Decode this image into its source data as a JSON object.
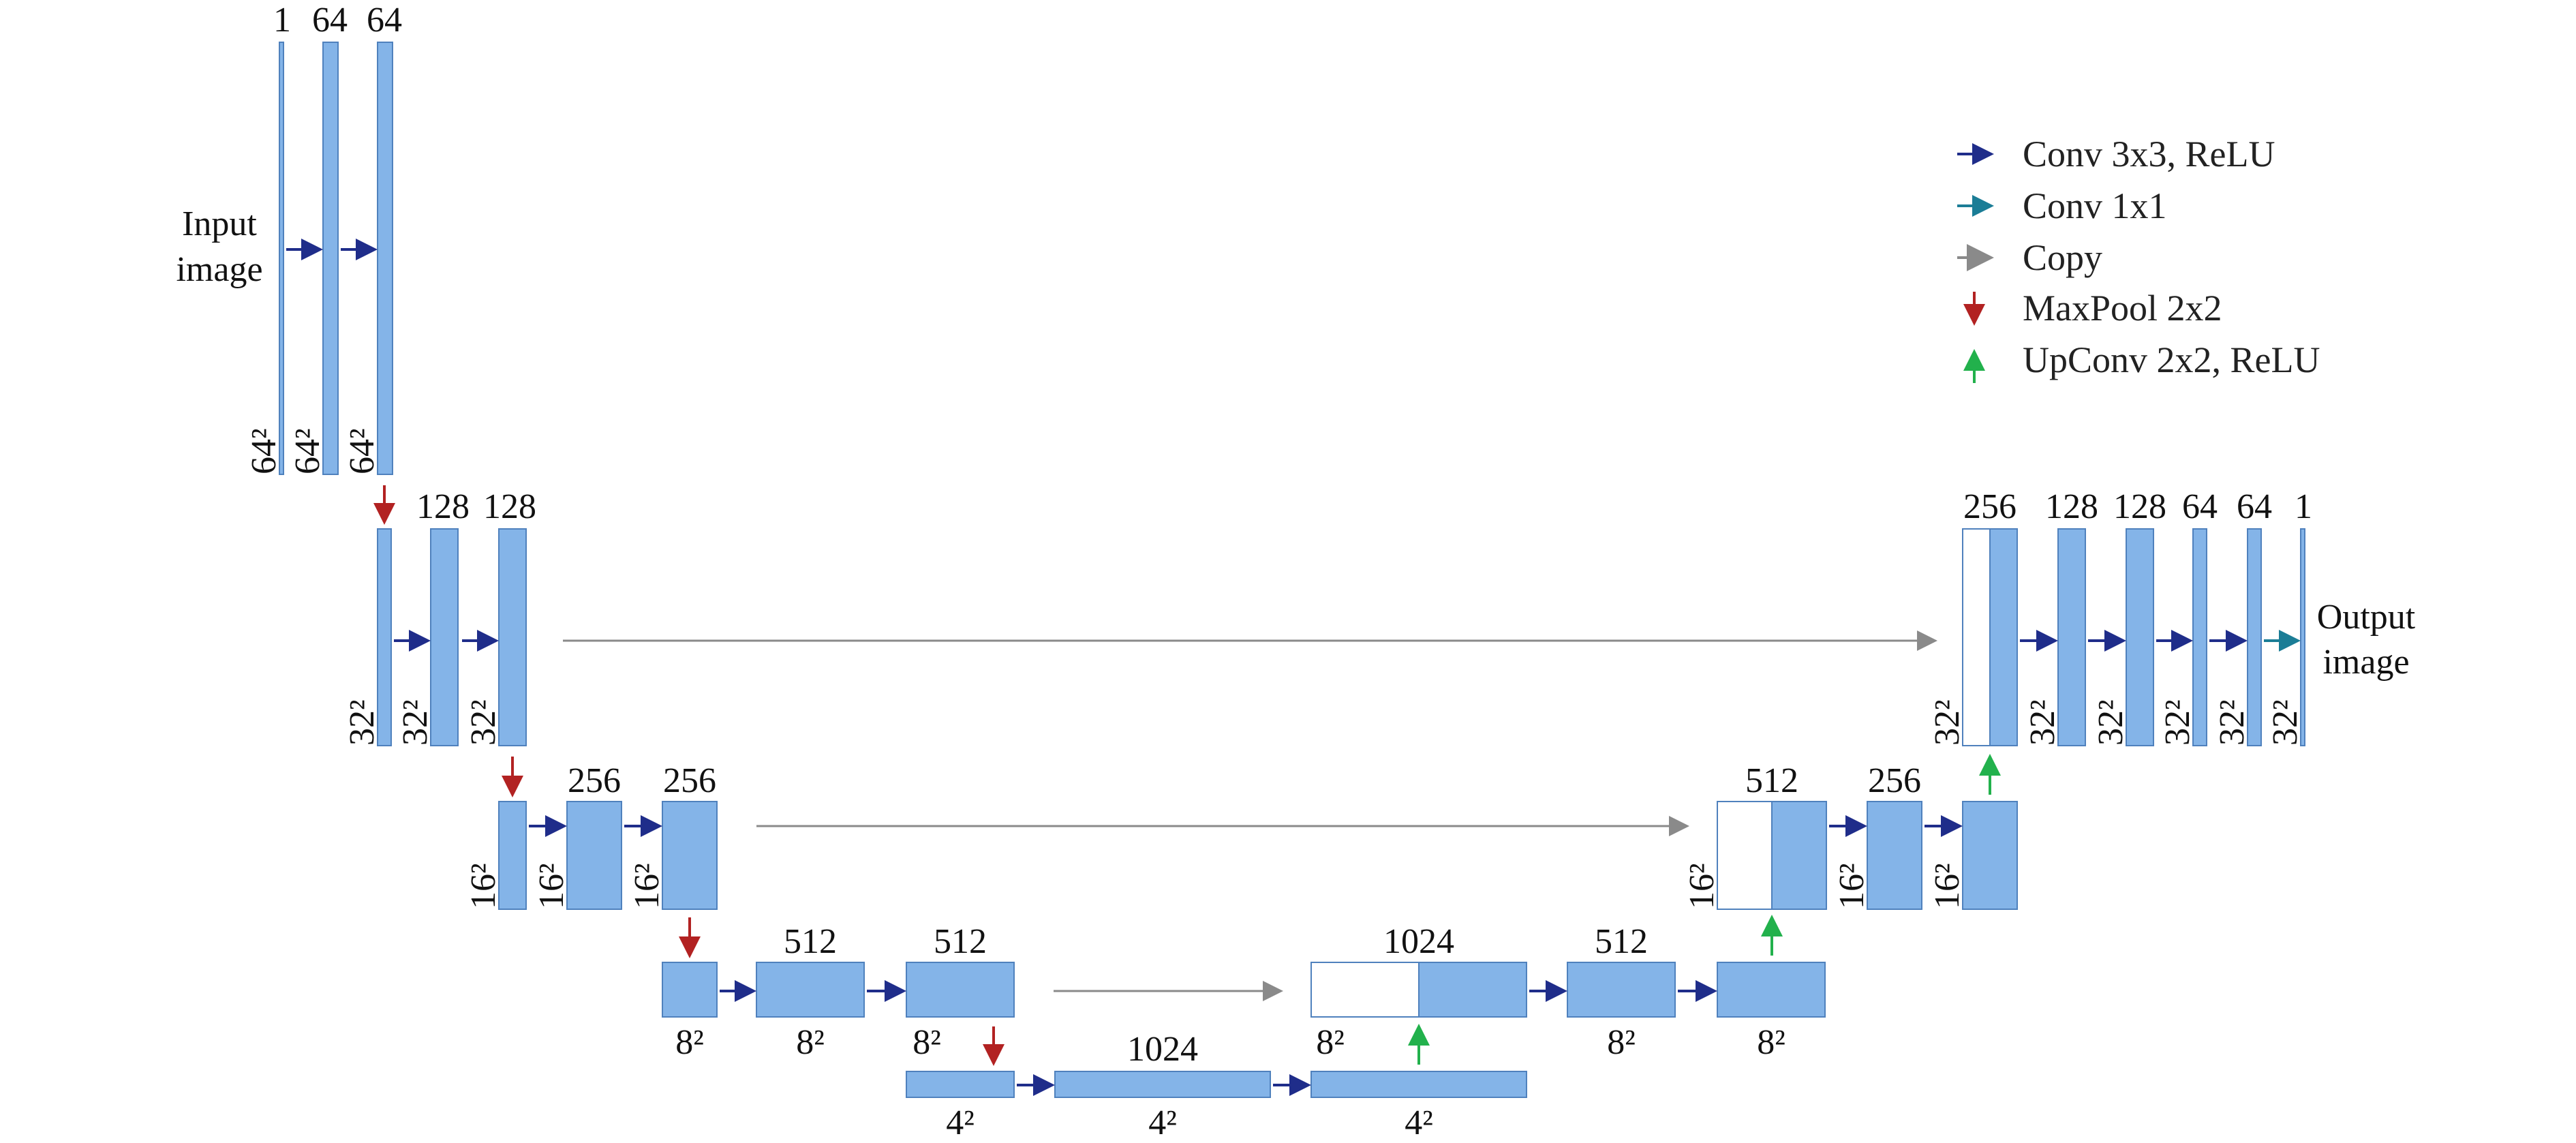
{
  "colors": {
    "feature_map_fill": "#84b4e8",
    "feature_map_stroke": "#4f81bd",
    "conv3x3": "#1f2d8a",
    "conv1x1": "#1b7d96",
    "copy": "#8a8a8a",
    "maxpool": "#b22222",
    "upconv": "#22b14c"
  },
  "legend": [
    {
      "icon": "conv3x3-arrow-icon",
      "label": "Conv 3x3, ReLU"
    },
    {
      "icon": "conv1x1-arrow-icon",
      "label": "Conv 1x1"
    },
    {
      "icon": "copy-arrow-icon",
      "label": "Copy"
    },
    {
      "icon": "maxpool-arrow-icon",
      "label": "MaxPool 2x2"
    },
    {
      "icon": "upconv-arrow-icon",
      "label": "UpConv 2x2, ReLU"
    }
  ],
  "input_label": [
    "Input",
    "image"
  ],
  "output_label": [
    "Output",
    "image"
  ],
  "channels": {
    "l1": [
      "1",
      "64",
      "64"
    ],
    "l2": [
      "128",
      "128"
    ],
    "l3": [
      "256",
      "256"
    ],
    "l4": [
      "512",
      "512"
    ],
    "bottom": [
      "1024"
    ],
    "up4": [
      "1024",
      "512"
    ],
    "up3": [
      "512",
      "256"
    ],
    "up2": [
      "256",
      "128",
      "128",
      "64",
      "64",
      "1"
    ]
  },
  "sizes": {
    "s64": "64²",
    "s32": "32²",
    "s16": "16²",
    "s8": "8²",
    "s4": "4²"
  }
}
